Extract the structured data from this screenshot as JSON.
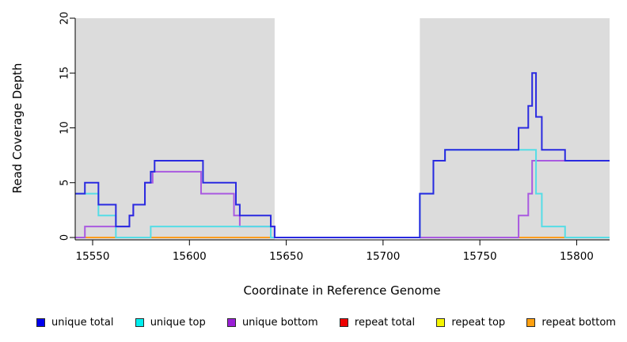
{
  "chart_data": {
    "type": "line",
    "subtype": "step-coverage-plot",
    "title": "",
    "xlabel": "Coordinate in Reference Genome",
    "ylabel": "Read Coverage Depth",
    "x_range": [
      15541,
      15817
    ],
    "y_range": [
      0,
      20
    ],
    "x_ticks": [
      15550,
      15600,
      15650,
      15700,
      15750,
      15800
    ],
    "x_tick_labels": [
      "15550",
      "15600",
      "15650",
      "15700",
      "15750",
      "15800"
    ],
    "y_ticks": [
      0,
      5,
      10,
      15,
      20
    ],
    "y_tick_labels": [
      "0",
      "5",
      "10",
      "15",
      "20"
    ],
    "grid": false,
    "legend_position": "bottom",
    "background_color": "#ffffff",
    "shaded_regions": [
      {
        "name": "left-gray-region",
        "from": 15541,
        "to": 15644,
        "color": "#dcdcdc"
      },
      {
        "name": "right-gray-region",
        "from": 15719,
        "to": 15817,
        "color": "#dcdcdc"
      }
    ],
    "gap_region": {
      "name": "white-gap",
      "from": 15644,
      "to": 15719,
      "color": "#ffffff"
    },
    "series": [
      {
        "name": "repeat total",
        "key": "repeat_total",
        "line_color": "#d43a3a",
        "steps": [
          [
            15541,
            0
          ]
        ]
      },
      {
        "name": "repeat top",
        "key": "repeat_top",
        "line_color": "#f0f000",
        "steps": [
          [
            15541,
            0
          ]
        ]
      },
      {
        "name": "repeat bottom",
        "key": "repeat_bottom",
        "line_color": "#ff9d1e",
        "steps": [
          [
            15541,
            0
          ]
        ]
      },
      {
        "name": "unique bottom",
        "key": "unique_bottom",
        "line_color": "#a95ae0",
        "steps": [
          [
            15541,
            0
          ],
          [
            15546,
            1
          ],
          [
            15569,
            2
          ],
          [
            15571,
            3
          ],
          [
            15577,
            5
          ],
          [
            15581,
            6
          ],
          [
            15606,
            4
          ],
          [
            15623,
            2
          ],
          [
            15626,
            1
          ],
          [
            15644,
            0
          ],
          [
            15770,
            2
          ],
          [
            15775,
            4
          ],
          [
            15777,
            7
          ]
        ]
      },
      {
        "name": "unique top",
        "key": "unique_top",
        "line_color": "#55dde6",
        "steps": [
          [
            15541,
            4
          ],
          [
            15553,
            2
          ],
          [
            15562,
            0
          ],
          [
            15580,
            1
          ],
          [
            15642,
            0
          ],
          [
            15719,
            4
          ],
          [
            15726,
            7
          ],
          [
            15732,
            8
          ],
          [
            15779,
            4
          ],
          [
            15782,
            1
          ],
          [
            15794,
            0
          ]
        ]
      },
      {
        "name": "unique total",
        "key": "unique_total",
        "line_color": "#2a2ae0",
        "steps": [
          [
            15541,
            4
          ],
          [
            15546,
            5
          ],
          [
            15553,
            3
          ],
          [
            15562,
            1
          ],
          [
            15569,
            2
          ],
          [
            15571,
            3
          ],
          [
            15577,
            5
          ],
          [
            15580,
            6
          ],
          [
            15582,
            7
          ],
          [
            15607,
            5
          ],
          [
            15624,
            3
          ],
          [
            15626,
            2
          ],
          [
            15642,
            1
          ],
          [
            15644,
            0
          ],
          [
            15719,
            4
          ],
          [
            15726,
            7
          ],
          [
            15732,
            8
          ],
          [
            15770,
            10
          ],
          [
            15775,
            12
          ],
          [
            15777,
            15
          ],
          [
            15779,
            11
          ],
          [
            15782,
            8
          ],
          [
            15794,
            7
          ]
        ]
      }
    ],
    "legend": [
      {
        "label": "unique total",
        "color": "#0000ee"
      },
      {
        "label": "unique top",
        "color": "#00eeee"
      },
      {
        "label": "unique bottom",
        "color": "#9a1fd6"
      },
      {
        "label": "repeat total",
        "color": "#ee0000"
      },
      {
        "label": "repeat top",
        "color": "#f5f500"
      },
      {
        "label": "repeat bottom",
        "color": "#ffa010"
      }
    ]
  }
}
